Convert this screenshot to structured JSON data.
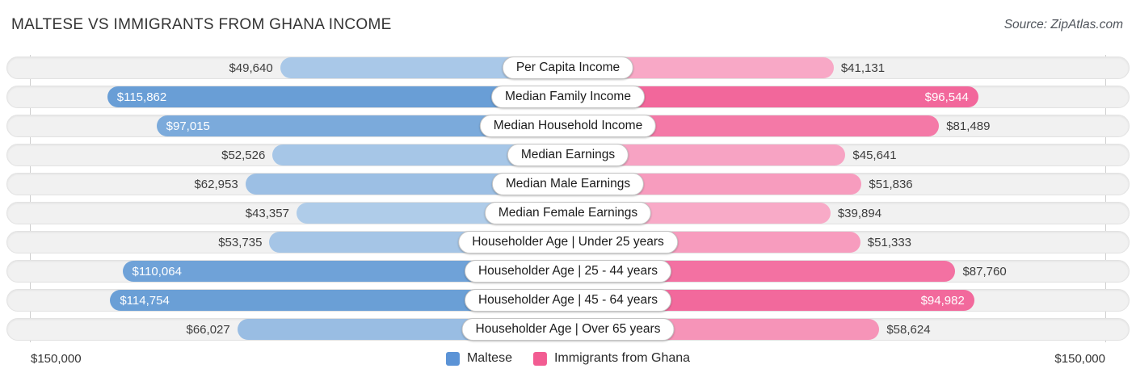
{
  "header": {
    "title": "MALTESE VS IMMIGRANTS FROM GHANA INCOME",
    "source": "Source: ZipAtlas.com"
  },
  "chart_data": {
    "type": "bar",
    "variant": "bidirectional-horizontal",
    "axis_max": 150000,
    "axis_max_label_left": "$150,000",
    "axis_max_label_right": "$150,000",
    "grid": false,
    "legend_position": "bottom-center",
    "categories": [
      "Per Capita Income",
      "Median Family Income",
      "Median Household Income",
      "Median Earnings",
      "Median Male Earnings",
      "Median Female Earnings",
      "Householder Age | Under 25 years",
      "Householder Age | 25 - 44 years",
      "Householder Age | 45 - 64 years",
      "Householder Age | Over 65 years"
    ],
    "series": [
      {
        "name": "Maltese",
        "side": "left",
        "color": "#699ed6",
        "legend_color": "#5b93d6",
        "values": [
          49640,
          115862,
          97015,
          52526,
          62953,
          43357,
          53735,
          110064,
          114754,
          66027
        ],
        "display": [
          "$49,640",
          "$115,862",
          "$97,015",
          "$52,526",
          "$62,953",
          "$43,357",
          "$53,735",
          "$110,064",
          "$114,754",
          "$66,027"
        ]
      },
      {
        "name": "Immigrants from Ghana",
        "side": "right",
        "color": "#f2679b",
        "legend_color": "#f25c92",
        "values": [
          41131,
          96544,
          81489,
          45641,
          51836,
          39894,
          51333,
          87760,
          94982,
          58624
        ],
        "display": [
          "$41,131",
          "$96,544",
          "$81,489",
          "$45,641",
          "$51,836",
          "$39,894",
          "$51,333",
          "$87,760",
          "$94,982",
          "$58,624"
        ]
      }
    ]
  }
}
